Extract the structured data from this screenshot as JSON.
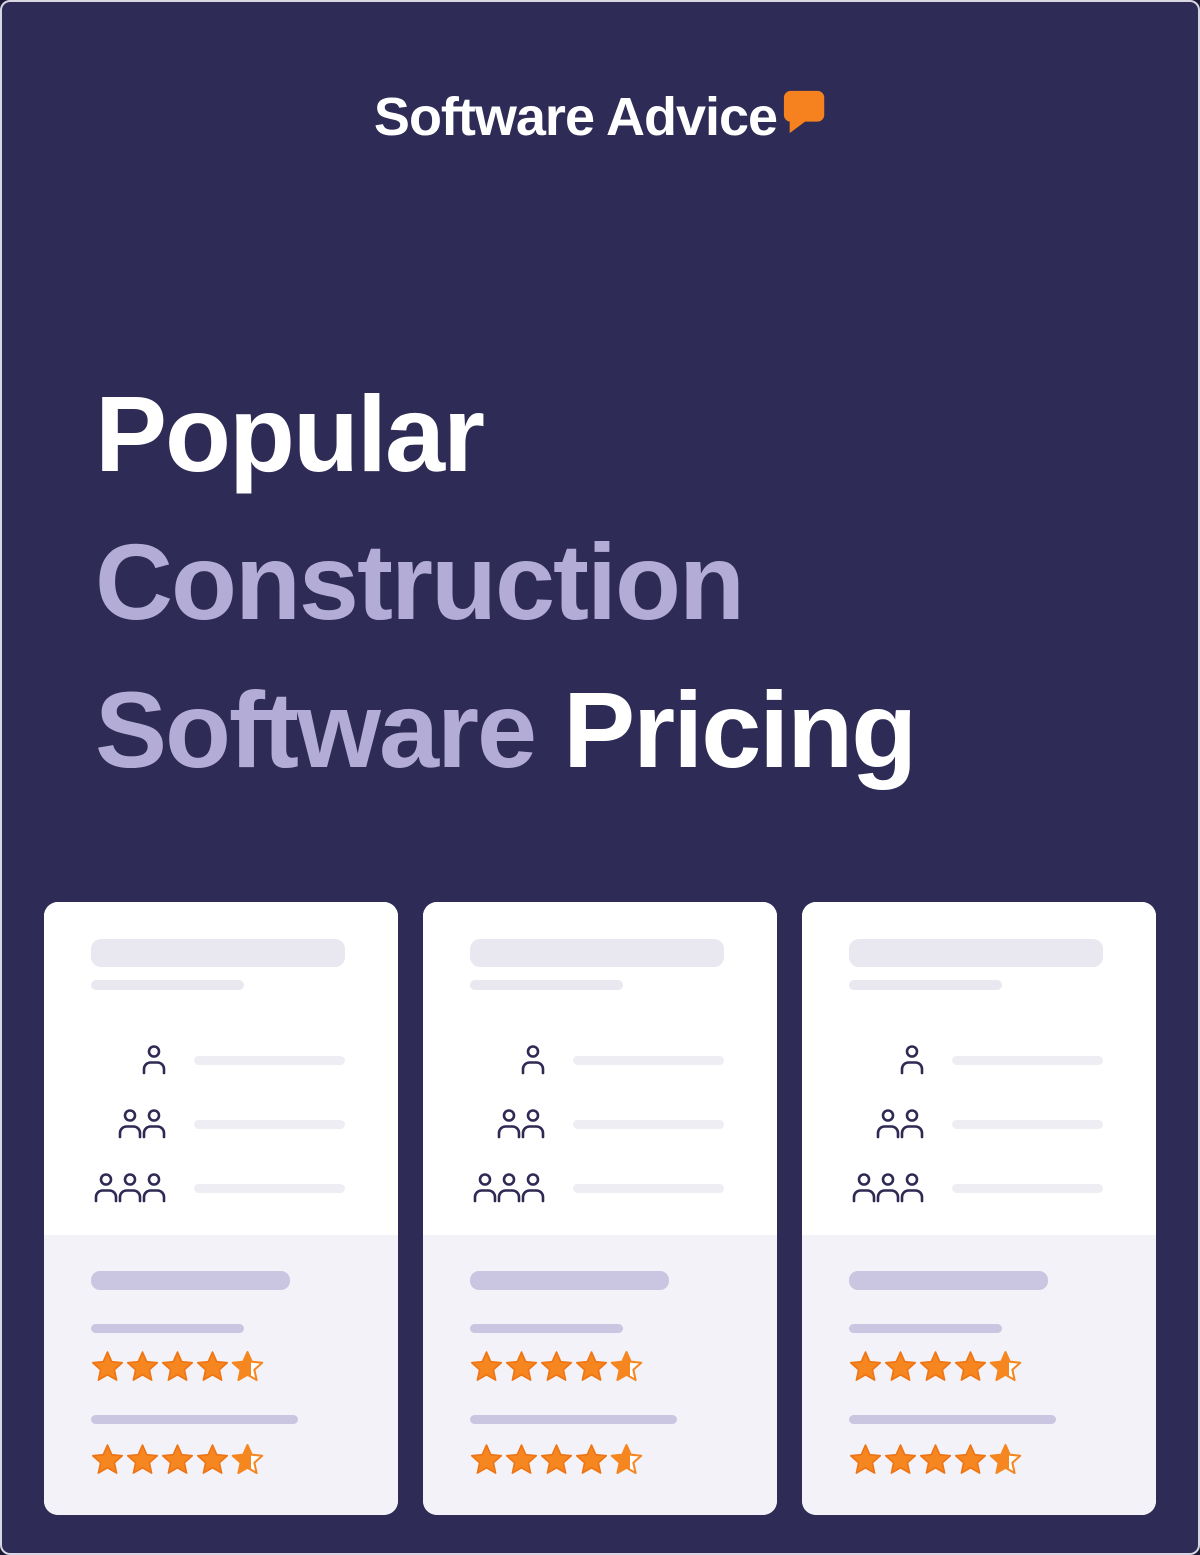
{
  "header": {
    "logo_text": "Software Advice",
    "logo_icon": "speech-bubble-icon"
  },
  "title": {
    "line1": "Popular",
    "line2": "Construction",
    "line3_lavender": "Software",
    "line3_white": "Pricing"
  },
  "colors": {
    "background": "#2e2b56",
    "title_white": "#ffffff",
    "title_lavender": "#b3acd7",
    "card_white": "#ffffff",
    "card_gray": "#f3f2f8",
    "placeholder_light": "#e9e8f0",
    "placeholder_lighter": "#eeedf3",
    "placeholder_lavender": "#cac5e0",
    "star_orange": "#f6861f",
    "star_orange_dark": "#ee7414",
    "icon_navy": "#2e2a54",
    "logo_bubble_orange": "#f5821f"
  },
  "cards": [
    {
      "name": "software-card-1",
      "person_rows": [
        1,
        2,
        3
      ],
      "ratings": [
        4.5,
        4.5
      ]
    },
    {
      "name": "software-card-2",
      "person_rows": [
        1,
        2,
        3
      ],
      "ratings": [
        4.5,
        4.5
      ]
    },
    {
      "name": "software-card-3",
      "person_rows": [
        1,
        2,
        3
      ],
      "ratings": [
        4.5,
        4.5
      ]
    }
  ]
}
